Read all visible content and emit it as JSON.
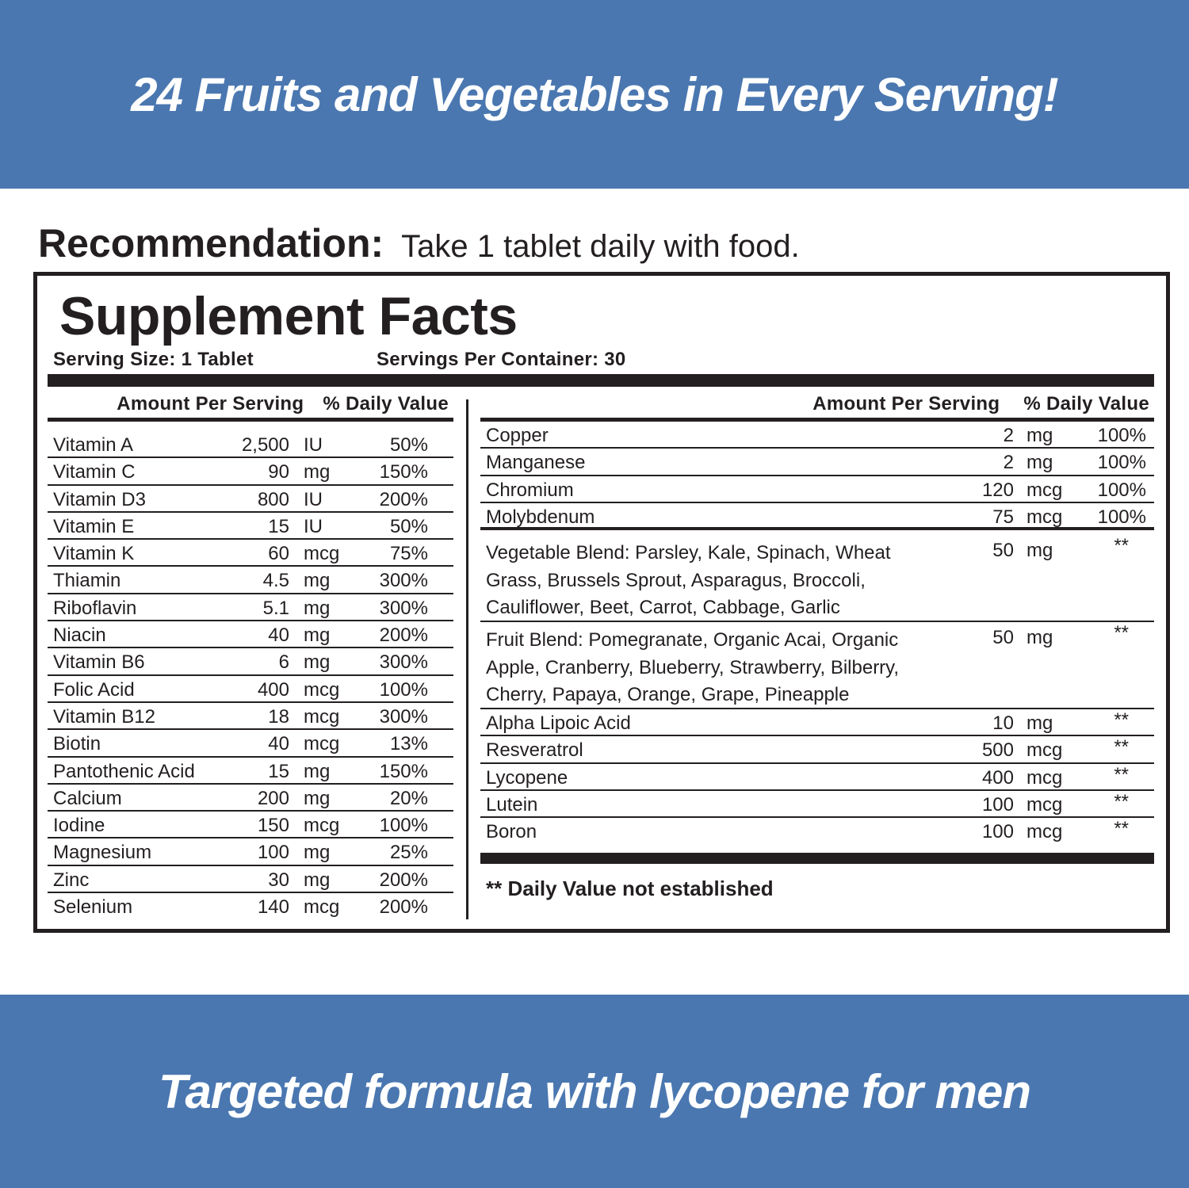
{
  "top_banner": "24 Fruits and Vegetables in Every Serving!",
  "recommendation": {
    "label": "Recommendation:",
    "text": "Take 1 tablet daily with food."
  },
  "facts": {
    "title": "Supplement Facts",
    "serving_size": "Serving Size: 1 Tablet",
    "servings_per_container": "Servings Per Container: 30",
    "header_amount": "Amount Per Serving",
    "header_dv": "% Daily Value",
    "left_rows": [
      {
        "name": "Vitamin A",
        "amount": "2,500",
        "unit": "IU",
        "dv": "50%"
      },
      {
        "name": "Vitamin C",
        "amount": "90",
        "unit": "mg",
        "dv": "150%"
      },
      {
        "name": "Vitamin D3",
        "amount": "800",
        "unit": "IU",
        "dv": "200%"
      },
      {
        "name": "Vitamin E",
        "amount": "15",
        "unit": "IU",
        "dv": "50%"
      },
      {
        "name": "Vitamin K",
        "amount": "60",
        "unit": "mcg",
        "dv": "75%"
      },
      {
        "name": "Thiamin",
        "amount": "4.5",
        "unit": "mg",
        "dv": "300%"
      },
      {
        "name": "Riboflavin",
        "amount": "5.1",
        "unit": "mg",
        "dv": "300%"
      },
      {
        "name": "Niacin",
        "amount": "40",
        "unit": "mg",
        "dv": "200%"
      },
      {
        "name": "Vitamin B6",
        "amount": "6",
        "unit": "mg",
        "dv": "300%"
      },
      {
        "name": "Folic Acid",
        "amount": "400",
        "unit": "mcg",
        "dv": "100%"
      },
      {
        "name": "Vitamin B12",
        "amount": "18",
        "unit": "mcg",
        "dv": "300%"
      },
      {
        "name": "Biotin",
        "amount": "40",
        "unit": "mcg",
        "dv": "13%"
      },
      {
        "name": "Pantothenic Acid",
        "amount": "15",
        "unit": "mg",
        "dv": "150%"
      },
      {
        "name": "Calcium",
        "amount": "200",
        "unit": "mg",
        "dv": "20%"
      },
      {
        "name": "Iodine",
        "amount": "150",
        "unit": "mcg",
        "dv": "100%"
      },
      {
        "name": "Magnesium",
        "amount": "100",
        "unit": "mg",
        "dv": "25%"
      },
      {
        "name": "Zinc",
        "amount": "30",
        "unit": "mg",
        "dv": "200%"
      },
      {
        "name": "Selenium",
        "amount": "140",
        "unit": "mcg",
        "dv": "200%"
      }
    ],
    "right_rows": [
      {
        "name": "Copper",
        "amount": "2",
        "unit": "mg",
        "dv": "100%"
      },
      {
        "name": "Manganese",
        "amount": "2",
        "unit": "mg",
        "dv": "100%"
      },
      {
        "name": "Chromium",
        "amount": "120",
        "unit": "mcg",
        "dv": "100%"
      },
      {
        "name": "Molybdenum",
        "amount": "75",
        "unit": "mcg",
        "dv": "100%"
      }
    ],
    "blends": [
      {
        "text": "Vegetable Blend: Parsley, Kale, Spinach, Wheat Grass, Brussels Sprout, Asparagus, Broccoli, Cauliflower, Beet, Carrot, Cabbage, Garlic",
        "amount": "50",
        "unit": "mg",
        "dv": "**"
      },
      {
        "text": "Fruit Blend: Pomegranate, Organic Acai, Organic Apple, Cranberry, Blueberry, Strawberry, Bilberry, Cherry, Papaya, Orange, Grape, Pineapple",
        "amount": "50",
        "unit": "mg",
        "dv": "**"
      }
    ],
    "other_rows": [
      {
        "name": "Alpha Lipoic Acid",
        "amount": "10",
        "unit": "mg",
        "dv": "**"
      },
      {
        "name": "Resveratrol",
        "amount": "500",
        "unit": "mcg",
        "dv": "**"
      },
      {
        "name": "Lycopene",
        "amount": "400",
        "unit": "mcg",
        "dv": "**"
      },
      {
        "name": "Lutein",
        "amount": "100",
        "unit": "mcg",
        "dv": "**"
      },
      {
        "name": "Boron",
        "amount": "100",
        "unit": "mcg",
        "dv": "**"
      }
    ],
    "footnote": "** Daily Value not established"
  },
  "bottom_banner": "Targeted formula with lycopene for men",
  "colors": {
    "banner": "#4a77b0",
    "text": "#231f20"
  }
}
